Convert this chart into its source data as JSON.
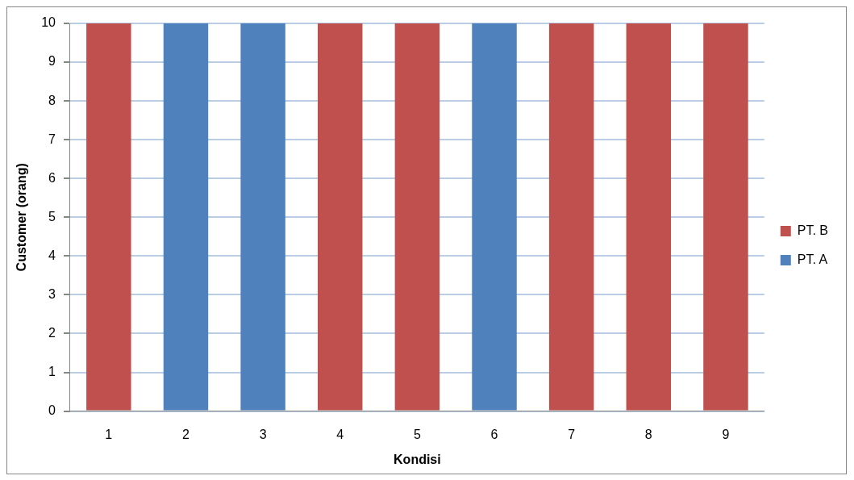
{
  "chart_data": {
    "type": "bar",
    "stacked": true,
    "xlabel": "Kondisi",
    "ylabel": "Customer (orang)",
    "categories": [
      "1",
      "2",
      "3",
      "4",
      "5",
      "6",
      "7",
      "8",
      "9"
    ],
    "series": [
      {
        "name": "PT. A",
        "color": "#4f81bd",
        "values": [
          0,
          10,
          10,
          0,
          0,
          10,
          0,
          0,
          0
        ]
      },
      {
        "name": "PT. B",
        "color": "#c0504d",
        "values": [
          10,
          0,
          0,
          10,
          10,
          0,
          10,
          10,
          10
        ]
      }
    ],
    "ylim": [
      0,
      10
    ],
    "yticks": [
      0,
      1,
      2,
      3,
      4,
      5,
      6,
      7,
      8,
      9,
      10
    ],
    "grid": "y",
    "legend": "right"
  }
}
